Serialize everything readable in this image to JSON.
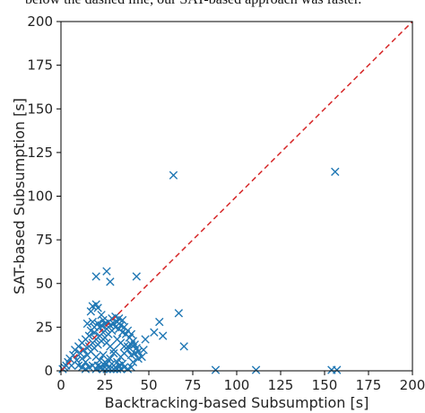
{
  "caption": "below the dashed line, our SAT-based approach was faster.",
  "chart_data": {
    "type": "scatter",
    "title": "",
    "xlabel": "Backtracking-based Subsumption [s]",
    "ylabel": "SAT-based Subsumption [s]",
    "xlim": [
      0,
      200
    ],
    "ylim": [
      0,
      200
    ],
    "xticks": [
      "0",
      "25",
      "50",
      "75",
      "100",
      "125",
      "150",
      "175",
      "200"
    ],
    "yticks": [
      "0",
      "25",
      "50",
      "75",
      "100",
      "125",
      "150",
      "175",
      "200"
    ],
    "grid": false,
    "marker": "x",
    "marker_color": "#1f77b4",
    "reference_line": {
      "style": "dashed",
      "color": "#d62728",
      "from": [
        0,
        0
      ],
      "to": [
        200,
        200
      ]
    },
    "points": [
      [
        64,
        112
      ],
      [
        156,
        114
      ],
      [
        26,
        57
      ],
      [
        20,
        54
      ],
      [
        43,
        54
      ],
      [
        28,
        51
      ],
      [
        20,
        38
      ],
      [
        18,
        37
      ],
      [
        21,
        36
      ],
      [
        17,
        34
      ],
      [
        23,
        32
      ],
      [
        67,
        33
      ],
      [
        56,
        28
      ],
      [
        70,
        14
      ],
      [
        58,
        20
      ],
      [
        53,
        22
      ],
      [
        48,
        18
      ],
      [
        47,
        12
      ],
      [
        36,
        10
      ],
      [
        38,
        14
      ],
      [
        40,
        9
      ],
      [
        41,
        5
      ],
      [
        88,
        0.5
      ],
      [
        111,
        0.5
      ],
      [
        154,
        0.5
      ],
      [
        157,
        0.5
      ],
      [
        15,
        27
      ],
      [
        18,
        28
      ],
      [
        24,
        29
      ],
      [
        22,
        25
      ],
      [
        19,
        22
      ],
      [
        16,
        20
      ],
      [
        14,
        18
      ],
      [
        12,
        16
      ],
      [
        10,
        14
      ],
      [
        8,
        12
      ],
      [
        7,
        9
      ],
      [
        5,
        7
      ],
      [
        4,
        5
      ],
      [
        3,
        3
      ],
      [
        2,
        2
      ],
      [
        1,
        1
      ],
      [
        6,
        3
      ],
      [
        9,
        6
      ],
      [
        11,
        10
      ],
      [
        13,
        12
      ],
      [
        12,
        7
      ],
      [
        15,
        9
      ],
      [
        14,
        5
      ],
      [
        17,
        11
      ],
      [
        16,
        14
      ],
      [
        18,
        16
      ],
      [
        19,
        13
      ],
      [
        20,
        18
      ],
      [
        21,
        15
      ],
      [
        22,
        20
      ],
      [
        23,
        17
      ],
      [
        24,
        22
      ],
      [
        25,
        19
      ],
      [
        26,
        24
      ],
      [
        27,
        21
      ],
      [
        28,
        26
      ],
      [
        29,
        23
      ],
      [
        30,
        27
      ],
      [
        31,
        25
      ],
      [
        32,
        28
      ],
      [
        33,
        24
      ],
      [
        34,
        26
      ],
      [
        35,
        22
      ],
      [
        36,
        25
      ],
      [
        37,
        21
      ],
      [
        38,
        23
      ],
      [
        39,
        19
      ],
      [
        40,
        21
      ],
      [
        41,
        17
      ],
      [
        42,
        15
      ],
      [
        43,
        13
      ],
      [
        44,
        11
      ],
      [
        35,
        29
      ],
      [
        33,
        30
      ],
      [
        31,
        31
      ],
      [
        29,
        30
      ],
      [
        27,
        28
      ],
      [
        25,
        27
      ],
      [
        23,
        26
      ],
      [
        20,
        8
      ],
      [
        22,
        6
      ],
      [
        24,
        9
      ],
      [
        26,
        4
      ],
      [
        28,
        7
      ],
      [
        30,
        10
      ],
      [
        32,
        5
      ],
      [
        34,
        8
      ],
      [
        21,
        3
      ],
      [
        23,
        2
      ],
      [
        25,
        5
      ],
      [
        27,
        2
      ],
      [
        29,
        4
      ],
      [
        31,
        2
      ],
      [
        33,
        3
      ],
      [
        35,
        4
      ],
      [
        10,
        3
      ],
      [
        12,
        2
      ],
      [
        14,
        1
      ],
      [
        16,
        2
      ],
      [
        18,
        3
      ],
      [
        20,
        1
      ],
      [
        22,
        2
      ],
      [
        24,
        1
      ],
      [
        26,
        1
      ],
      [
        28,
        1
      ],
      [
        30,
        1
      ],
      [
        32,
        1
      ],
      [
        34,
        1
      ],
      [
        36,
        2
      ],
      [
        38,
        1
      ],
      [
        40,
        2
      ],
      [
        19,
        25
      ],
      [
        17,
        23
      ],
      [
        21,
        27
      ],
      [
        26,
        16
      ],
      [
        28,
        14
      ],
      [
        30,
        12
      ],
      [
        32,
        18
      ],
      [
        34,
        16
      ],
      [
        36,
        14
      ],
      [
        38,
        12
      ],
      [
        40,
        15
      ],
      [
        42,
        10
      ],
      [
        44,
        7
      ],
      [
        46,
        8
      ]
    ]
  }
}
